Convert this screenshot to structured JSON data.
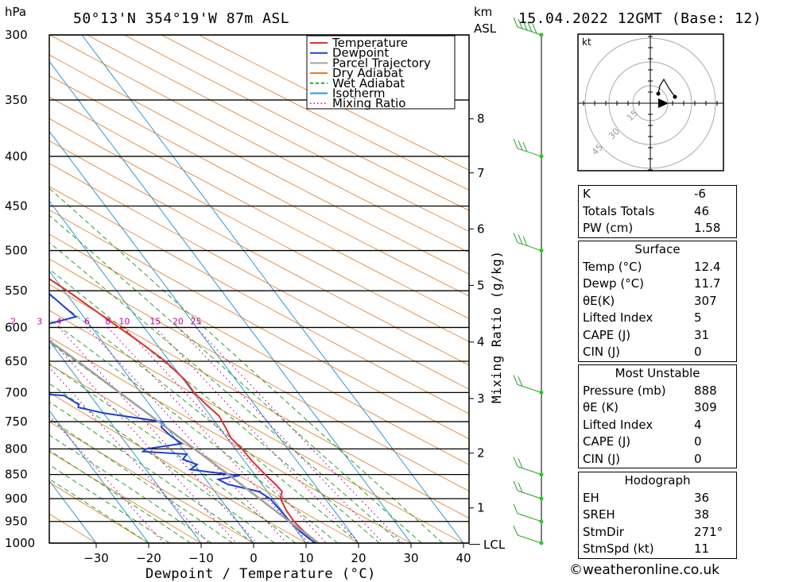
{
  "header": {
    "pressure_unit": "hPa",
    "location": "50°13'N 354°19'W 87m ASL",
    "km_unit": "km",
    "asl_unit": "ASL",
    "datetime": "15.04.2022 12GMT (Base: 12)"
  },
  "chart_data": {
    "type": "skew-t log-p",
    "xlabel": "Dewpoint / Temperature (°C)",
    "ylabel_right": "Mixing Ratio (g/kg)",
    "pressure_levels": [
      300,
      350,
      400,
      450,
      500,
      550,
      600,
      650,
      700,
      750,
      800,
      850,
      900,
      950,
      1000
    ],
    "pressure_labels": [
      "300",
      "350",
      "400",
      "450",
      "500",
      "550",
      "600",
      "650",
      "700",
      "750",
      "800",
      "850",
      "900",
      "950",
      "1000"
    ],
    "temperature_ticks": [
      -30,
      -20,
      -10,
      0,
      10,
      20,
      30,
      40
    ],
    "temperature_tick_labels": [
      "−30",
      "−20",
      "−10",
      "0",
      "10",
      "20",
      "30",
      "40"
    ],
    "xlim": [
      -40,
      40
    ],
    "ylim": [
      1000,
      300
    ],
    "height_ticks_km": [
      "8",
      "7",
      "6",
      "5",
      "4",
      "3",
      "2",
      "1"
    ],
    "height_tick_pressures": [
      366,
      416,
      475,
      543,
      621,
      710,
      808,
      920
    ],
    "lcl_label": "LCL",
    "lcl_pressure": 1003,
    "mixing_ratio_labels": [
      "1",
      "2",
      "3",
      "4",
      "6",
      "8",
      "10",
      "15",
      "20",
      "25"
    ],
    "mixing_ratio_values": [
      1,
      2,
      3,
      4,
      6,
      8,
      10,
      15,
      20,
      25
    ],
    "legend": [
      {
        "name": "Temperature",
        "color": "#e03030",
        "style": "solid"
      },
      {
        "name": "Dewpoint",
        "color": "#1f3fd6",
        "style": "solid"
      },
      {
        "name": "Parcel Trajectory",
        "color": "#a0a0a0",
        "style": "solid"
      },
      {
        "name": "Dry Adiabat",
        "color": "#e07a1f",
        "style": "solid"
      },
      {
        "name": "Wet Adiabat",
        "color": "#2aa02a",
        "style": "dashed"
      },
      {
        "name": "Isotherm",
        "color": "#2a9ad6",
        "style": "solid"
      },
      {
        "name": "Mixing Ratio",
        "color": "#cc00aa",
        "style": "dotted"
      }
    ],
    "series": [
      {
        "name": "Temperature",
        "points": [
          [
            1000,
            12.4
          ],
          [
            975,
            11.3
          ],
          [
            950,
            10.8
          ],
          [
            925,
            10.9
          ],
          [
            900,
            11.5
          ],
          [
            885,
            12.8
          ],
          [
            870,
            12.6
          ],
          [
            850,
            12.0
          ],
          [
            820,
            11.4
          ],
          [
            800,
            11.3
          ],
          [
            780,
            10.7
          ],
          [
            760,
            11.2
          ],
          [
            740,
            11.6
          ],
          [
            720,
            10.8
          ],
          [
            700,
            10.2
          ],
          [
            680,
            10.3
          ],
          [
            650,
            9.2
          ],
          [
            620,
            7.0
          ],
          [
            600,
            5.2
          ],
          [
            550,
            0.6
          ],
          [
            500,
            -5.2
          ],
          [
            475,
            -8.0
          ],
          [
            450,
            -10.8
          ],
          [
            400,
            -16.8
          ],
          [
            350,
            -24.4
          ],
          [
            330,
            -27.0
          ],
          [
            300,
            -32.0
          ]
        ]
      },
      {
        "name": "Dewpoint",
        "points": [
          [
            1000,
            11.7
          ],
          [
            975,
            10.6
          ],
          [
            950,
            10.0
          ],
          [
            925,
            9.8
          ],
          [
            910,
            9.6
          ],
          [
            900,
            9.5
          ],
          [
            885,
            8.4
          ],
          [
            870,
            3.5
          ],
          [
            860,
            2.4
          ],
          [
            852,
            7.0
          ],
          [
            845,
            1.8
          ],
          [
            840,
            -1.5
          ],
          [
            830,
            0.5
          ],
          [
            820,
            -1.5
          ],
          [
            810,
            0.0
          ],
          [
            805,
            -8.0
          ],
          [
            800,
            -7.0
          ],
          [
            790,
            0.5
          ],
          [
            775,
            -0.5
          ],
          [
            760,
            -1.0
          ],
          [
            750,
            0.0
          ],
          [
            735,
            -10.0
          ],
          [
            725,
            -14.0
          ],
          [
            720,
            -13.5
          ],
          [
            705,
            -15.0
          ],
          [
            700,
            -22.0
          ],
          [
            670,
            -27.5
          ],
          [
            660,
            -30.0
          ],
          [
            650,
            -24.0
          ],
          [
            630,
            -11.0
          ],
          [
            620,
            -10.3
          ],
          [
            610,
            -12.5
          ],
          [
            600,
            -11.0
          ],
          [
            585,
            -1.5
          ],
          [
            550,
            -3.5
          ],
          [
            520,
            -5.5
          ],
          [
            500,
            -6.5
          ],
          [
            490,
            -5.0
          ],
          [
            480,
            -3.8
          ],
          [
            470,
            -10.0
          ],
          [
            455,
            -17.0
          ],
          [
            450,
            -18.5
          ],
          [
            400,
            -14.5
          ],
          [
            375,
            -13.5
          ],
          [
            350,
            -14.5
          ],
          [
            330,
            -11.0
          ],
          [
            300,
            -11.5
          ]
        ]
      },
      {
        "name": "Parcel Trajectory",
        "points": [
          [
            1000,
            12.4
          ],
          [
            950,
            9.9
          ],
          [
            900,
            7.5
          ],
          [
            850,
            5.0
          ],
          [
            800,
            2.2
          ],
          [
            750,
            -0.7
          ],
          [
            700,
            -4.0
          ],
          [
            650,
            -7.5
          ],
          [
            600,
            -11.6
          ],
          [
            550,
            -16.2
          ],
          [
            500,
            -21.5
          ],
          [
            450,
            -27.5
          ],
          [
            400,
            -34.5
          ],
          [
            350,
            -43.0
          ],
          [
            300,
            -53.0
          ]
        ]
      }
    ],
    "wind_barbs": [
      {
        "pressure": 300,
        "speed_kt": 45
      },
      {
        "pressure": 400,
        "speed_kt": 30
      },
      {
        "pressure": 500,
        "speed_kt": 25
      },
      {
        "pressure": 700,
        "speed_kt": 20
      },
      {
        "pressure": 850,
        "speed_kt": 15
      },
      {
        "pressure": 900,
        "speed_kt": 15
      },
      {
        "pressure": 950,
        "speed_kt": 12
      },
      {
        "pressure": 1000,
        "speed_kt": 10
      }
    ],
    "hodograph": {
      "unit": "kt",
      "ring_labels": [
        "15",
        "30",
        "45"
      ]
    }
  },
  "indices": {
    "rows": [
      {
        "k": "K",
        "v": "-6"
      },
      {
        "k": "Totals Totals",
        "v": "46"
      },
      {
        "k": "PW (cm)",
        "v": "1.58"
      }
    ]
  },
  "surface": {
    "title": "Surface",
    "rows": [
      {
        "k": "Temp (°C)",
        "v": "12.4"
      },
      {
        "k": "Dewp (°C)",
        "v": "11.7"
      },
      {
        "k": "θE(K)",
        "v": "307"
      },
      {
        "k": "Lifted Index",
        "v": "5"
      },
      {
        "k": "CAPE (J)",
        "v": "31"
      },
      {
        "k": "CIN (J)",
        "v": "0"
      }
    ]
  },
  "most_unstable": {
    "title": "Most Unstable",
    "rows": [
      {
        "k": "Pressure (mb)",
        "v": "888"
      },
      {
        "k": "θE (K)",
        "v": "309"
      },
      {
        "k": "Lifted Index",
        "v": "4"
      },
      {
        "k": "CAPE (J)",
        "v": "0"
      },
      {
        "k": "CIN (J)",
        "v": "0"
      }
    ]
  },
  "hodograph_table": {
    "title": "Hodograph",
    "rows": [
      {
        "k": "EH",
        "v": "36"
      },
      {
        "k": "SREH",
        "v": "38"
      },
      {
        "k": "StmDir",
        "v": "271°"
      },
      {
        "k": "StmSpd (kt)",
        "v": "11"
      }
    ]
  },
  "footer": {
    "text": "©weatheronline.co.uk"
  }
}
